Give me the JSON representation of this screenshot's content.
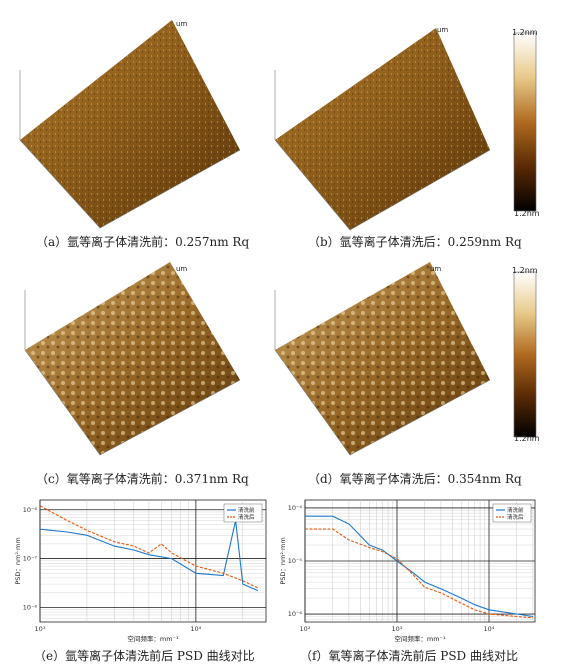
{
  "panels": {
    "a": {
      "caption": "（a）氩等离子体清洗前：0.257nm Rq",
      "axis_unit": "um",
      "ticks": [
        "2",
        "4",
        "6",
        "8",
        "10",
        "2",
        "4",
        "6",
        "8",
        "10"
      ]
    },
    "b": {
      "caption": "（b）氩等离子体清洗后：0.259nm Rq",
      "axis_unit": "um",
      "ticks": [
        "2",
        "4",
        "6",
        "8",
        "10",
        "2",
        "4",
        "6",
        "8",
        "10"
      ]
    },
    "c": {
      "caption": "（c）氧等离子体清洗前：0.371nm Rq",
      "axis_unit": "um",
      "ticks": [
        "2",
        "4",
        "6",
        "8",
        "10",
        "2",
        "4",
        "6",
        "8",
        "10"
      ]
    },
    "d": {
      "caption": "（d）氧等离子体清洗后：0.354nm Rq",
      "axis_unit": "um",
      "ticks": [
        "2",
        "4",
        "6",
        "8",
        "10",
        "2",
        "4",
        "6",
        "8",
        "10"
      ]
    },
    "e": {
      "caption": "（e）氩等离子体清洗前后 PSD 曲线对比"
    },
    "f": {
      "caption": "（f）氧等离子体清洗前后 PSD 曲线对比"
    }
  },
  "colorbar_top": {
    "max_label": "1.2nm",
    "min_label": "1.2nm"
  },
  "colorbar_bottom": {
    "max_label": "1.2nm",
    "min_label": "1.2nm"
  },
  "colors": {
    "before": "#1f78c8",
    "after": "#e05a10",
    "surface_dark": "#4a2a08",
    "surface_light": "#e8c98a"
  },
  "chart_data": [
    {
      "type": "line",
      "xscale": "log",
      "yscale": "log",
      "xlabel": "空间频率：mm⁻¹",
      "ylabel": "PSD：nm²·mm",
      "x_ticks": [
        "10³",
        "10⁴"
      ],
      "y_ticks": [
        "10⁻⁶",
        "10⁻⁷",
        "10⁻⁸"
      ],
      "legend": "top-right",
      "series": [
        {
          "name": "清洗前",
          "color": "#1f78c8",
          "x": [
            1000,
            1500,
            2000,
            3000,
            4000,
            5000,
            7000,
            10000,
            15000,
            18000,
            20000,
            25000
          ],
          "y": [
            4e-07,
            3.5e-07,
            3e-07,
            1.8e-07,
            1.5e-07,
            1.2e-07,
            1e-07,
            5e-08,
            4.5e-08,
            6e-07,
            3e-08,
            2.2e-08
          ]
        },
        {
          "name": "清洗后",
          "color": "#e05a10",
          "x": [
            1000,
            1500,
            2000,
            3000,
            4000,
            5000,
            6000,
            7000,
            10000,
            15000,
            20000,
            25000
          ],
          "y": [
            1.2e-06,
            6e-07,
            3.8e-07,
            2.2e-07,
            1.8e-07,
            1.3e-07,
            2e-07,
            1.3e-07,
            7e-08,
            5e-08,
            3.5e-08,
            2.5e-08
          ]
        }
      ]
    },
    {
      "type": "line",
      "xscale": "log",
      "yscale": "log",
      "xlabel": "空间频率：mm⁻¹",
      "ylabel": "PSD：nm²·mm",
      "x_ticks": [
        "10²",
        "10³",
        "10⁴"
      ],
      "y_ticks": [
        "10⁻⁴",
        "10⁻⁵",
        "10⁻⁶"
      ],
      "legend": "top-right",
      "series": [
        {
          "name": "清洗前",
          "color": "#1f78c8",
          "x": [
            100,
            200,
            300,
            500,
            700,
            1000,
            1500,
            2000,
            3000,
            5000,
            7000,
            10000,
            20000,
            30000
          ],
          "y": [
            7e-05,
            7e-05,
            5e-05,
            2e-05,
            1.6e-05,
            1e-05,
            6e-06,
            4e-06,
            3e-06,
            2e-06,
            1.5e-06,
            1.2e-06,
            1e-06,
            9e-07
          ]
        },
        {
          "name": "清洗后",
          "color": "#e05a10",
          "x": [
            100,
            200,
            300,
            500,
            700,
            1000,
            1500,
            2000,
            3000,
            5000,
            7000,
            10000,
            20000,
            30000
          ],
          "y": [
            4e-05,
            4e-05,
            2.5e-05,
            1.8e-05,
            1.5e-05,
            1.1e-05,
            5.5e-06,
            3.2e-06,
            2.5e-06,
            1.6e-06,
            1.2e-06,
            1e-06,
            9e-07,
            8.5e-07
          ]
        }
      ]
    }
  ]
}
